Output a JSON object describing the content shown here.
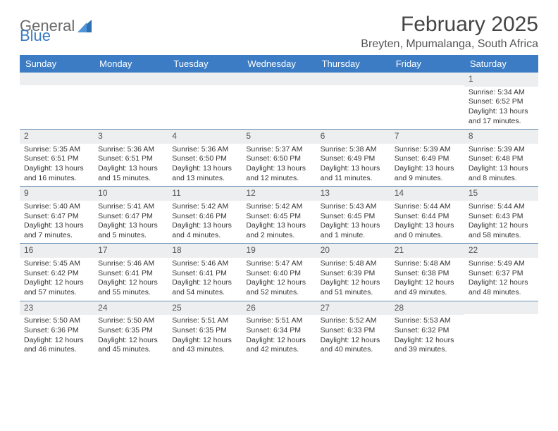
{
  "logo": {
    "text1": "General",
    "text2": "Blue"
  },
  "title": "February 2025",
  "location": "Breyten, Mpumalanga, South Africa",
  "colors": {
    "header_bg": "#3b7cc4",
    "header_text": "#ffffff",
    "daynum_bg": "#eceeef",
    "week_border": "#6a8fb6",
    "body_text": "#333333",
    "page_bg": "#ffffff"
  },
  "day_labels": [
    "Sunday",
    "Monday",
    "Tuesday",
    "Wednesday",
    "Thursday",
    "Friday",
    "Saturday"
  ],
  "weeks": [
    [
      null,
      null,
      null,
      null,
      null,
      null,
      {
        "n": "1",
        "sunrise": "Sunrise: 5:34 AM",
        "sunset": "Sunset: 6:52 PM",
        "day1": "Daylight: 13 hours",
        "day2": "and 17 minutes."
      }
    ],
    [
      {
        "n": "2",
        "sunrise": "Sunrise: 5:35 AM",
        "sunset": "Sunset: 6:51 PM",
        "day1": "Daylight: 13 hours",
        "day2": "and 16 minutes."
      },
      {
        "n": "3",
        "sunrise": "Sunrise: 5:36 AM",
        "sunset": "Sunset: 6:51 PM",
        "day1": "Daylight: 13 hours",
        "day2": "and 15 minutes."
      },
      {
        "n": "4",
        "sunrise": "Sunrise: 5:36 AM",
        "sunset": "Sunset: 6:50 PM",
        "day1": "Daylight: 13 hours",
        "day2": "and 13 minutes."
      },
      {
        "n": "5",
        "sunrise": "Sunrise: 5:37 AM",
        "sunset": "Sunset: 6:50 PM",
        "day1": "Daylight: 13 hours",
        "day2": "and 12 minutes."
      },
      {
        "n": "6",
        "sunrise": "Sunrise: 5:38 AM",
        "sunset": "Sunset: 6:49 PM",
        "day1": "Daylight: 13 hours",
        "day2": "and 11 minutes."
      },
      {
        "n": "7",
        "sunrise": "Sunrise: 5:39 AM",
        "sunset": "Sunset: 6:49 PM",
        "day1": "Daylight: 13 hours",
        "day2": "and 9 minutes."
      },
      {
        "n": "8",
        "sunrise": "Sunrise: 5:39 AM",
        "sunset": "Sunset: 6:48 PM",
        "day1": "Daylight: 13 hours",
        "day2": "and 8 minutes."
      }
    ],
    [
      {
        "n": "9",
        "sunrise": "Sunrise: 5:40 AM",
        "sunset": "Sunset: 6:47 PM",
        "day1": "Daylight: 13 hours",
        "day2": "and 7 minutes."
      },
      {
        "n": "10",
        "sunrise": "Sunrise: 5:41 AM",
        "sunset": "Sunset: 6:47 PM",
        "day1": "Daylight: 13 hours",
        "day2": "and 5 minutes."
      },
      {
        "n": "11",
        "sunrise": "Sunrise: 5:42 AM",
        "sunset": "Sunset: 6:46 PM",
        "day1": "Daylight: 13 hours",
        "day2": "and 4 minutes."
      },
      {
        "n": "12",
        "sunrise": "Sunrise: 5:42 AM",
        "sunset": "Sunset: 6:45 PM",
        "day1": "Daylight: 13 hours",
        "day2": "and 2 minutes."
      },
      {
        "n": "13",
        "sunrise": "Sunrise: 5:43 AM",
        "sunset": "Sunset: 6:45 PM",
        "day1": "Daylight: 13 hours",
        "day2": "and 1 minute."
      },
      {
        "n": "14",
        "sunrise": "Sunrise: 5:44 AM",
        "sunset": "Sunset: 6:44 PM",
        "day1": "Daylight: 13 hours",
        "day2": "and 0 minutes."
      },
      {
        "n": "15",
        "sunrise": "Sunrise: 5:44 AM",
        "sunset": "Sunset: 6:43 PM",
        "day1": "Daylight: 12 hours",
        "day2": "and 58 minutes."
      }
    ],
    [
      {
        "n": "16",
        "sunrise": "Sunrise: 5:45 AM",
        "sunset": "Sunset: 6:42 PM",
        "day1": "Daylight: 12 hours",
        "day2": "and 57 minutes."
      },
      {
        "n": "17",
        "sunrise": "Sunrise: 5:46 AM",
        "sunset": "Sunset: 6:41 PM",
        "day1": "Daylight: 12 hours",
        "day2": "and 55 minutes."
      },
      {
        "n": "18",
        "sunrise": "Sunrise: 5:46 AM",
        "sunset": "Sunset: 6:41 PM",
        "day1": "Daylight: 12 hours",
        "day2": "and 54 minutes."
      },
      {
        "n": "19",
        "sunrise": "Sunrise: 5:47 AM",
        "sunset": "Sunset: 6:40 PM",
        "day1": "Daylight: 12 hours",
        "day2": "and 52 minutes."
      },
      {
        "n": "20",
        "sunrise": "Sunrise: 5:48 AM",
        "sunset": "Sunset: 6:39 PM",
        "day1": "Daylight: 12 hours",
        "day2": "and 51 minutes."
      },
      {
        "n": "21",
        "sunrise": "Sunrise: 5:48 AM",
        "sunset": "Sunset: 6:38 PM",
        "day1": "Daylight: 12 hours",
        "day2": "and 49 minutes."
      },
      {
        "n": "22",
        "sunrise": "Sunrise: 5:49 AM",
        "sunset": "Sunset: 6:37 PM",
        "day1": "Daylight: 12 hours",
        "day2": "and 48 minutes."
      }
    ],
    [
      {
        "n": "23",
        "sunrise": "Sunrise: 5:50 AM",
        "sunset": "Sunset: 6:36 PM",
        "day1": "Daylight: 12 hours",
        "day2": "and 46 minutes."
      },
      {
        "n": "24",
        "sunrise": "Sunrise: 5:50 AM",
        "sunset": "Sunset: 6:35 PM",
        "day1": "Daylight: 12 hours",
        "day2": "and 45 minutes."
      },
      {
        "n": "25",
        "sunrise": "Sunrise: 5:51 AM",
        "sunset": "Sunset: 6:35 PM",
        "day1": "Daylight: 12 hours",
        "day2": "and 43 minutes."
      },
      {
        "n": "26",
        "sunrise": "Sunrise: 5:51 AM",
        "sunset": "Sunset: 6:34 PM",
        "day1": "Daylight: 12 hours",
        "day2": "and 42 minutes."
      },
      {
        "n": "27",
        "sunrise": "Sunrise: 5:52 AM",
        "sunset": "Sunset: 6:33 PM",
        "day1": "Daylight: 12 hours",
        "day2": "and 40 minutes."
      },
      {
        "n": "28",
        "sunrise": "Sunrise: 5:53 AM",
        "sunset": "Sunset: 6:32 PM",
        "day1": "Daylight: 12 hours",
        "day2": "and 39 minutes."
      },
      null
    ]
  ]
}
